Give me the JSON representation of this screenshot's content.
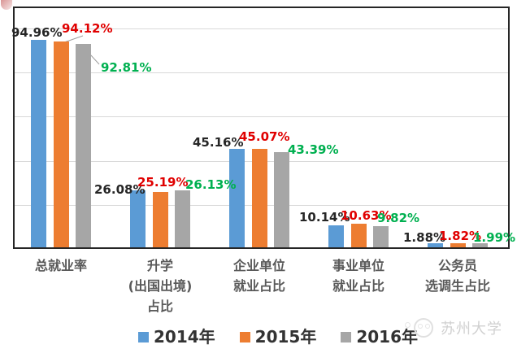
{
  "chart_data": {
    "type": "bar",
    "title": "",
    "categories": [
      [
        "总就业率"
      ],
      [
        "升学",
        "(出国出境)",
        "占比"
      ],
      [
        "企业单位",
        "就业占比"
      ],
      [
        "事业单位",
        "就业占比"
      ],
      [
        "公务员",
        "选调生占比"
      ]
    ],
    "series": [
      {
        "name": "2014年",
        "color": "#5B9BD5",
        "label_color": "#262626",
        "values": [
          94.96,
          26.08,
          45.16,
          10.14,
          1.88
        ]
      },
      {
        "name": "2015年",
        "color": "#ED7D31",
        "label_color": "#E00000",
        "values": [
          94.12,
          25.19,
          45.07,
          10.63,
          1.82
        ]
      },
      {
        "name": "2016年",
        "color": "#A6A6A6",
        "label_color": "#00B050",
        "values": [
          92.81,
          26.13,
          43.39,
          9.82,
          1.99
        ]
      }
    ],
    "value_suffix": "%",
    "ylim": [
      0,
      100
    ],
    "grid": true,
    "gridline_interval": 20,
    "legend_position": "bottom"
  },
  "legend": {
    "items": [
      {
        "label": "2014年",
        "color": "#5B9BD5"
      },
      {
        "label": "2015年",
        "color": "#ED7D31"
      },
      {
        "label": "2016年",
        "color": "#A6A6A6"
      }
    ]
  },
  "watermark": {
    "text": "苏州大学",
    "logo_icon": "university-seal-icon"
  },
  "colors": {
    "background": "#FFFFFF",
    "plot_border": "#262626",
    "gridline": "#D9D9D9",
    "category_label": "#595959",
    "legend_text": "#333333"
  }
}
